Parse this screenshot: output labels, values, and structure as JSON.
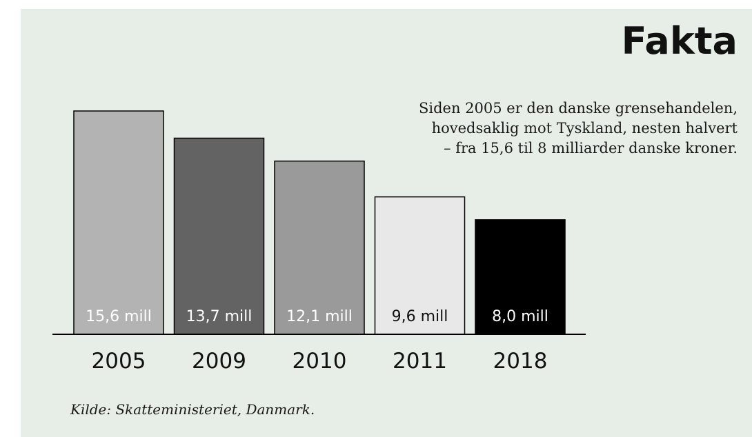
{
  "heading": "Fakta",
  "intro_lines": [
    "Siden 2005 er den danske grensehandelen,",
    "hovedsaklig mot Tyskland, nesten halvert",
    "– fra 15,6 til 8 milliarder danske kroner."
  ],
  "source": "Kilde: Skatteministeriet, Danmark.",
  "chart_data": {
    "type": "bar",
    "categories": [
      "2005",
      "2009",
      "2010",
      "2011",
      "2018"
    ],
    "values": [
      15.6,
      13.7,
      12.1,
      9.6,
      8.0
    ],
    "value_labels": [
      "15,6 mill",
      "13,7 mill",
      "12,1 mill",
      "9,6 mill",
      "8,0 mill"
    ],
    "bar_colors": [
      "#b3b3b3",
      "#636363",
      "#9a9a9a",
      "#e8e8e8",
      "#000000"
    ],
    "label_colors": [
      "#ffffff",
      "#ffffff",
      "#ffffff",
      "#111111",
      "#ffffff"
    ],
    "title": "",
    "xlabel": "",
    "ylabel": "",
    "ylim": [
      0,
      15.6
    ],
    "grid": false
  }
}
